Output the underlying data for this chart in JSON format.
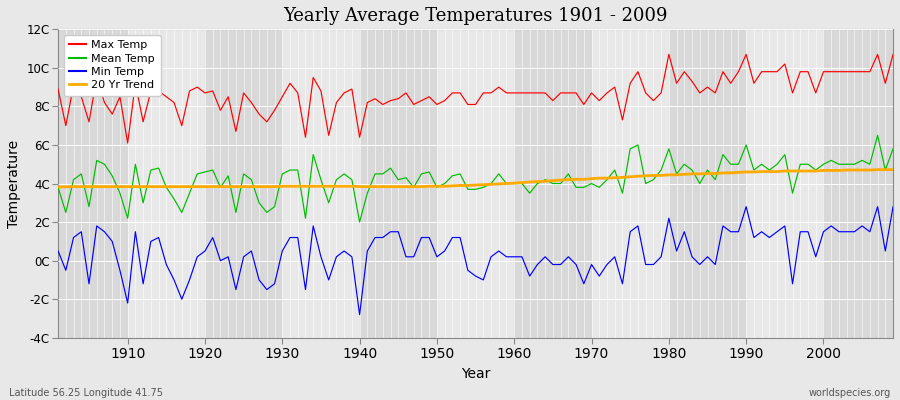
{
  "title": "Yearly Average Temperatures 1901 - 2009",
  "xlabel": "Year",
  "ylabel": "Temperature",
  "subtitle_lat": "Latitude 56.25 Longitude 41.75",
  "watermark": "worldspecies.org",
  "years": [
    1901,
    1902,
    1903,
    1904,
    1905,
    1906,
    1907,
    1908,
    1909,
    1910,
    1911,
    1912,
    1913,
    1914,
    1915,
    1916,
    1917,
    1918,
    1919,
    1920,
    1921,
    1922,
    1923,
    1924,
    1925,
    1926,
    1927,
    1928,
    1929,
    1930,
    1931,
    1932,
    1933,
    1934,
    1935,
    1936,
    1937,
    1938,
    1939,
    1940,
    1941,
    1942,
    1943,
    1944,
    1945,
    1946,
    1947,
    1948,
    1949,
    1950,
    1951,
    1952,
    1953,
    1954,
    1955,
    1956,
    1957,
    1958,
    1959,
    1960,
    1961,
    1962,
    1963,
    1964,
    1965,
    1966,
    1967,
    1968,
    1969,
    1970,
    1971,
    1972,
    1973,
    1974,
    1975,
    1976,
    1977,
    1978,
    1979,
    1980,
    1981,
    1982,
    1983,
    1984,
    1985,
    1986,
    1987,
    1988,
    1989,
    1990,
    1991,
    1992,
    1993,
    1994,
    1995,
    1996,
    1997,
    1998,
    1999,
    2000,
    2001,
    2002,
    2003,
    2004,
    2005,
    2006,
    2007,
    2008,
    2009
  ],
  "max_temp": [
    8.9,
    7.0,
    9.1,
    8.5,
    7.2,
    9.5,
    8.2,
    7.6,
    8.5,
    6.1,
    9.2,
    7.2,
    8.8,
    8.8,
    8.5,
    8.2,
    7.0,
    8.8,
    9.0,
    8.7,
    8.8,
    7.8,
    8.5,
    6.7,
    8.7,
    8.2,
    7.6,
    7.2,
    7.8,
    8.5,
    9.2,
    8.7,
    6.4,
    9.5,
    8.8,
    6.5,
    8.2,
    8.7,
    8.9,
    6.4,
    8.2,
    8.4,
    8.1,
    8.3,
    8.4,
    8.7,
    8.1,
    8.3,
    8.5,
    8.1,
    8.3,
    8.7,
    8.7,
    8.1,
    8.1,
    8.7,
    8.7,
    9.0,
    8.7,
    8.7,
    8.7,
    8.7,
    8.7,
    8.7,
    8.3,
    8.7,
    8.7,
    8.7,
    8.1,
    8.7,
    8.3,
    8.7,
    9.0,
    7.3,
    9.2,
    9.8,
    8.7,
    8.3,
    8.7,
    10.7,
    9.2,
    9.8,
    9.3,
    8.7,
    9.0,
    8.7,
    9.8,
    9.2,
    9.8,
    10.7,
    9.2,
    9.8,
    9.8,
    9.8,
    10.2,
    8.7,
    9.8,
    9.8,
    8.7,
    9.8,
    9.8,
    9.8,
    9.8,
    9.8,
    9.8,
    9.8,
    10.7,
    9.2,
    10.7
  ],
  "mean_temp": [
    3.8,
    2.5,
    4.2,
    4.5,
    2.8,
    5.2,
    5.0,
    4.4,
    3.5,
    2.2,
    5.0,
    3.0,
    4.7,
    4.8,
    3.8,
    3.2,
    2.5,
    3.5,
    4.5,
    4.6,
    4.7,
    3.8,
    4.4,
    2.5,
    4.5,
    4.2,
    3.0,
    2.5,
    2.8,
    4.5,
    4.7,
    4.7,
    2.2,
    5.5,
    4.2,
    3.0,
    4.2,
    4.5,
    4.2,
    2.0,
    3.5,
    4.5,
    4.5,
    4.8,
    4.2,
    4.3,
    3.8,
    4.5,
    4.6,
    3.8,
    4.0,
    4.4,
    4.5,
    3.7,
    3.7,
    3.8,
    4.0,
    4.5,
    4.0,
    4.0,
    4.0,
    3.5,
    4.0,
    4.2,
    4.0,
    4.0,
    4.5,
    3.8,
    3.8,
    4.0,
    3.8,
    4.2,
    4.7,
    3.5,
    5.8,
    6.0,
    4.0,
    4.2,
    4.7,
    5.8,
    4.5,
    5.0,
    4.7,
    4.0,
    4.7,
    4.2,
    5.5,
    5.0,
    5.0,
    6.0,
    4.7,
    5.0,
    4.7,
    5.0,
    5.5,
    3.5,
    5.0,
    5.0,
    4.7,
    5.0,
    5.2,
    5.0,
    5.0,
    5.0,
    5.2,
    5.0,
    6.5,
    4.7,
    5.8
  ],
  "min_temp": [
    0.5,
    -0.5,
    1.2,
    1.5,
    -1.2,
    1.8,
    1.5,
    1.0,
    -0.5,
    -2.2,
    1.5,
    -1.2,
    1.0,
    1.2,
    -0.2,
    -1.0,
    -2.0,
    -1.0,
    0.2,
    0.5,
    1.2,
    0.0,
    0.2,
    -1.5,
    0.2,
    0.5,
    -1.0,
    -1.5,
    -1.2,
    0.5,
    1.2,
    1.2,
    -1.5,
    1.8,
    0.2,
    -1.0,
    0.2,
    0.5,
    0.2,
    -2.8,
    0.5,
    1.2,
    1.2,
    1.5,
    1.5,
    0.2,
    0.2,
    1.2,
    1.2,
    0.2,
    0.5,
    1.2,
    1.2,
    -0.5,
    -0.8,
    -1.0,
    0.2,
    0.5,
    0.2,
    0.2,
    0.2,
    -0.8,
    -0.2,
    0.2,
    -0.2,
    -0.2,
    0.2,
    -0.2,
    -1.2,
    -0.2,
    -0.8,
    -0.2,
    0.2,
    -1.2,
    1.5,
    1.8,
    -0.2,
    -0.2,
    0.2,
    2.2,
    0.5,
    1.5,
    0.2,
    -0.2,
    0.2,
    -0.2,
    1.8,
    1.5,
    1.5,
    2.8,
    1.2,
    1.5,
    1.2,
    1.5,
    1.8,
    -1.2,
    1.5,
    1.5,
    0.2,
    1.5,
    1.8,
    1.5,
    1.5,
    1.5,
    1.8,
    1.5,
    2.8,
    0.5,
    2.8
  ],
  "trend": [
    3.82,
    3.83,
    3.84,
    3.84,
    3.84,
    3.84,
    3.84,
    3.84,
    3.84,
    3.84,
    3.84,
    3.84,
    3.84,
    3.84,
    3.84,
    3.84,
    3.84,
    3.84,
    3.84,
    3.84,
    3.84,
    3.84,
    3.84,
    3.84,
    3.84,
    3.84,
    3.84,
    3.84,
    3.84,
    3.86,
    3.86,
    3.86,
    3.86,
    3.86,
    3.86,
    3.86,
    3.86,
    3.86,
    3.86,
    3.84,
    3.84,
    3.84,
    3.84,
    3.84,
    3.84,
    3.84,
    3.84,
    3.84,
    3.86,
    3.86,
    3.86,
    3.88,
    3.9,
    3.9,
    3.92,
    3.94,
    3.96,
    3.98,
    4.0,
    4.02,
    4.05,
    4.08,
    4.1,
    4.12,
    4.15,
    4.18,
    4.2,
    4.22,
    4.22,
    4.25,
    4.28,
    4.28,
    4.3,
    4.32,
    4.35,
    4.38,
    4.4,
    4.42,
    4.42,
    4.45,
    4.45,
    4.48,
    4.5,
    4.5,
    4.52,
    4.52,
    4.55,
    4.55,
    4.58,
    4.6,
    4.6,
    4.62,
    4.62,
    4.62,
    4.65,
    4.65,
    4.65,
    4.65,
    4.65,
    4.68,
    4.68,
    4.68,
    4.7,
    4.7,
    4.7,
    4.7,
    4.72,
    4.72,
    4.72
  ],
  "max_color": "#ff0000",
  "mean_color": "#00bb00",
  "min_color": "#0000ff",
  "trend_color": "#ffaa00",
  "plot_bg_light": "#e8e8e8",
  "plot_bg_dark": "#d8d8d8",
  "grid_color": "#ffffff",
  "fig_bg": "#e8e8e8",
  "ylim": [
    -4,
    12
  ],
  "yticks": [
    -4,
    -2,
    0,
    2,
    4,
    6,
    8,
    10,
    12
  ],
  "ytick_labels": [
    "-4C",
    "-2C",
    "0C",
    "2C",
    "4C",
    "6C",
    "8C",
    "10C",
    "12C"
  ],
  "legend_labels": [
    "Max Temp",
    "Mean Temp",
    "Min Temp",
    "20 Yr Trend"
  ],
  "decade_starts": [
    1901,
    1910,
    1920,
    1930,
    1940,
    1950,
    1960,
    1970,
    1980,
    1990,
    2000,
    2009
  ]
}
